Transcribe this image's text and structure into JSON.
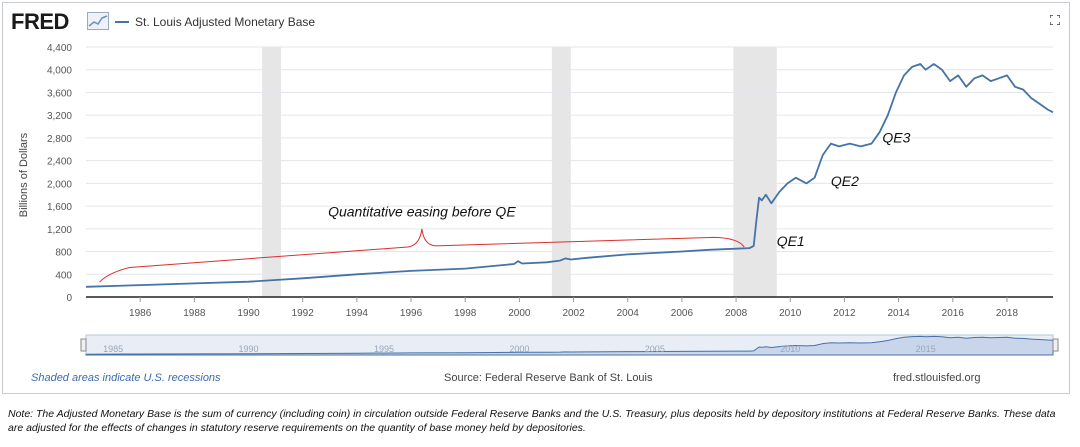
{
  "header": {
    "logo_text": "FRED",
    "series_label": "St. Louis Adjusted Monetary Base"
  },
  "footer": {
    "recession_note": "Shaded areas indicate U.S. recessions",
    "source": "Source: Federal Reserve Bank of St. Louis",
    "url": "fred.stlouisfed.org"
  },
  "note": "Note: The Adjusted Monetary Base is the sum of currency (including coin) in circulation outside Federal Reserve Banks and the U.S. Treasury, plus deposits held by depository institutions at Federal Reserve Banks. These data are adjusted for the effects of changes in statutory reserve requirements on the quantity of base money held by depositories.",
  "colors": {
    "series": "#4572a7",
    "recession": "#e6e6e6",
    "annotation_brace": "#d93030",
    "navigator_fill": "#c9d5ea"
  },
  "chart_data": {
    "type": "line",
    "title": "",
    "xlabel": "",
    "ylabel": "Billions of Dollars",
    "xlim": [
      1984.0,
      2019.7
    ],
    "ylim": [
      0,
      4400
    ],
    "y_ticks": [
      0,
      400,
      800,
      1200,
      1600,
      2000,
      2400,
      2800,
      3200,
      3600,
      4000,
      4400
    ],
    "y_tick_labels": [
      "0",
      "400",
      "800",
      "1,200",
      "1,600",
      "2,000",
      "2,400",
      "2,800",
      "3,200",
      "3,600",
      "4,000",
      "4,400"
    ],
    "x_ticks": [
      1986,
      1988,
      1990,
      1992,
      1994,
      1996,
      1998,
      2000,
      2002,
      2004,
      2006,
      2008,
      2010,
      2012,
      2014,
      2016,
      2018
    ],
    "x_tick_labels": [
      "1986",
      "1988",
      "1990",
      "1992",
      "1994",
      "1996",
      "1998",
      "2000",
      "2002",
      "2004",
      "2006",
      "2008",
      "2010",
      "2012",
      "2014",
      "2016",
      "2018"
    ],
    "grid": true,
    "recessions": [
      [
        1990.5,
        1991.2
      ],
      [
        2001.2,
        2001.9
      ],
      [
        2007.9,
        2009.5
      ]
    ],
    "series": [
      {
        "name": "St. Louis Adjusted Monetary Base",
        "x": [
          1984.0,
          1986.0,
          1988.0,
          1990.0,
          1991.0,
          1992.0,
          1994.0,
          1996.0,
          1998.0,
          1999.8,
          1999.95,
          2000.1,
          2001.0,
          2001.5,
          2001.7,
          2001.9,
          2002.5,
          2004.0,
          2006.0,
          2007.0,
          2008.0,
          2008.5,
          2008.65,
          2008.75,
          2008.85,
          2008.95,
          2009.1,
          2009.3,
          2009.6,
          2009.9,
          2010.2,
          2010.6,
          2010.9,
          2011.2,
          2011.5,
          2011.8,
          2012.2,
          2012.6,
          2013.0,
          2013.3,
          2013.6,
          2013.9,
          2014.2,
          2014.5,
          2014.8,
          2015.0,
          2015.3,
          2015.6,
          2015.9,
          2016.2,
          2016.5,
          2016.8,
          2017.1,
          2017.4,
          2017.7,
          2018.0,
          2018.3,
          2018.6,
          2018.9,
          2019.2,
          2019.5,
          2019.7
        ],
        "values": [
          180,
          210,
          240,
          270,
          300,
          330,
          400,
          460,
          500,
          580,
          630,
          590,
          610,
          640,
          680,
          660,
          690,
          750,
          800,
          830,
          850,
          860,
          900,
          1350,
          1750,
          1700,
          1800,
          1650,
          1850,
          2000,
          2100,
          2000,
          2100,
          2500,
          2700,
          2650,
          2700,
          2650,
          2700,
          2900,
          3200,
          3600,
          3900,
          4050,
          4100,
          4000,
          4100,
          4000,
          3800,
          3900,
          3700,
          3850,
          3900,
          3800,
          3850,
          3900,
          3700,
          3650,
          3500,
          3400,
          3300,
          3250
        ]
      }
    ],
    "annotations": [
      {
        "text": "Quantitative easing before QE",
        "x": 1996.4,
        "y": 1420
      },
      {
        "text": "QE1",
        "x": 2009.5,
        "y": 900
      },
      {
        "text": "QE2",
        "x": 2011.5,
        "y": 1950
      },
      {
        "text": "QE3",
        "x": 2013.4,
        "y": 2720
      }
    ],
    "navigator": {
      "x_tick_labels": [
        "1985",
        "1990",
        "1995",
        "2000",
        "2005",
        "2010",
        "2015"
      ]
    }
  }
}
